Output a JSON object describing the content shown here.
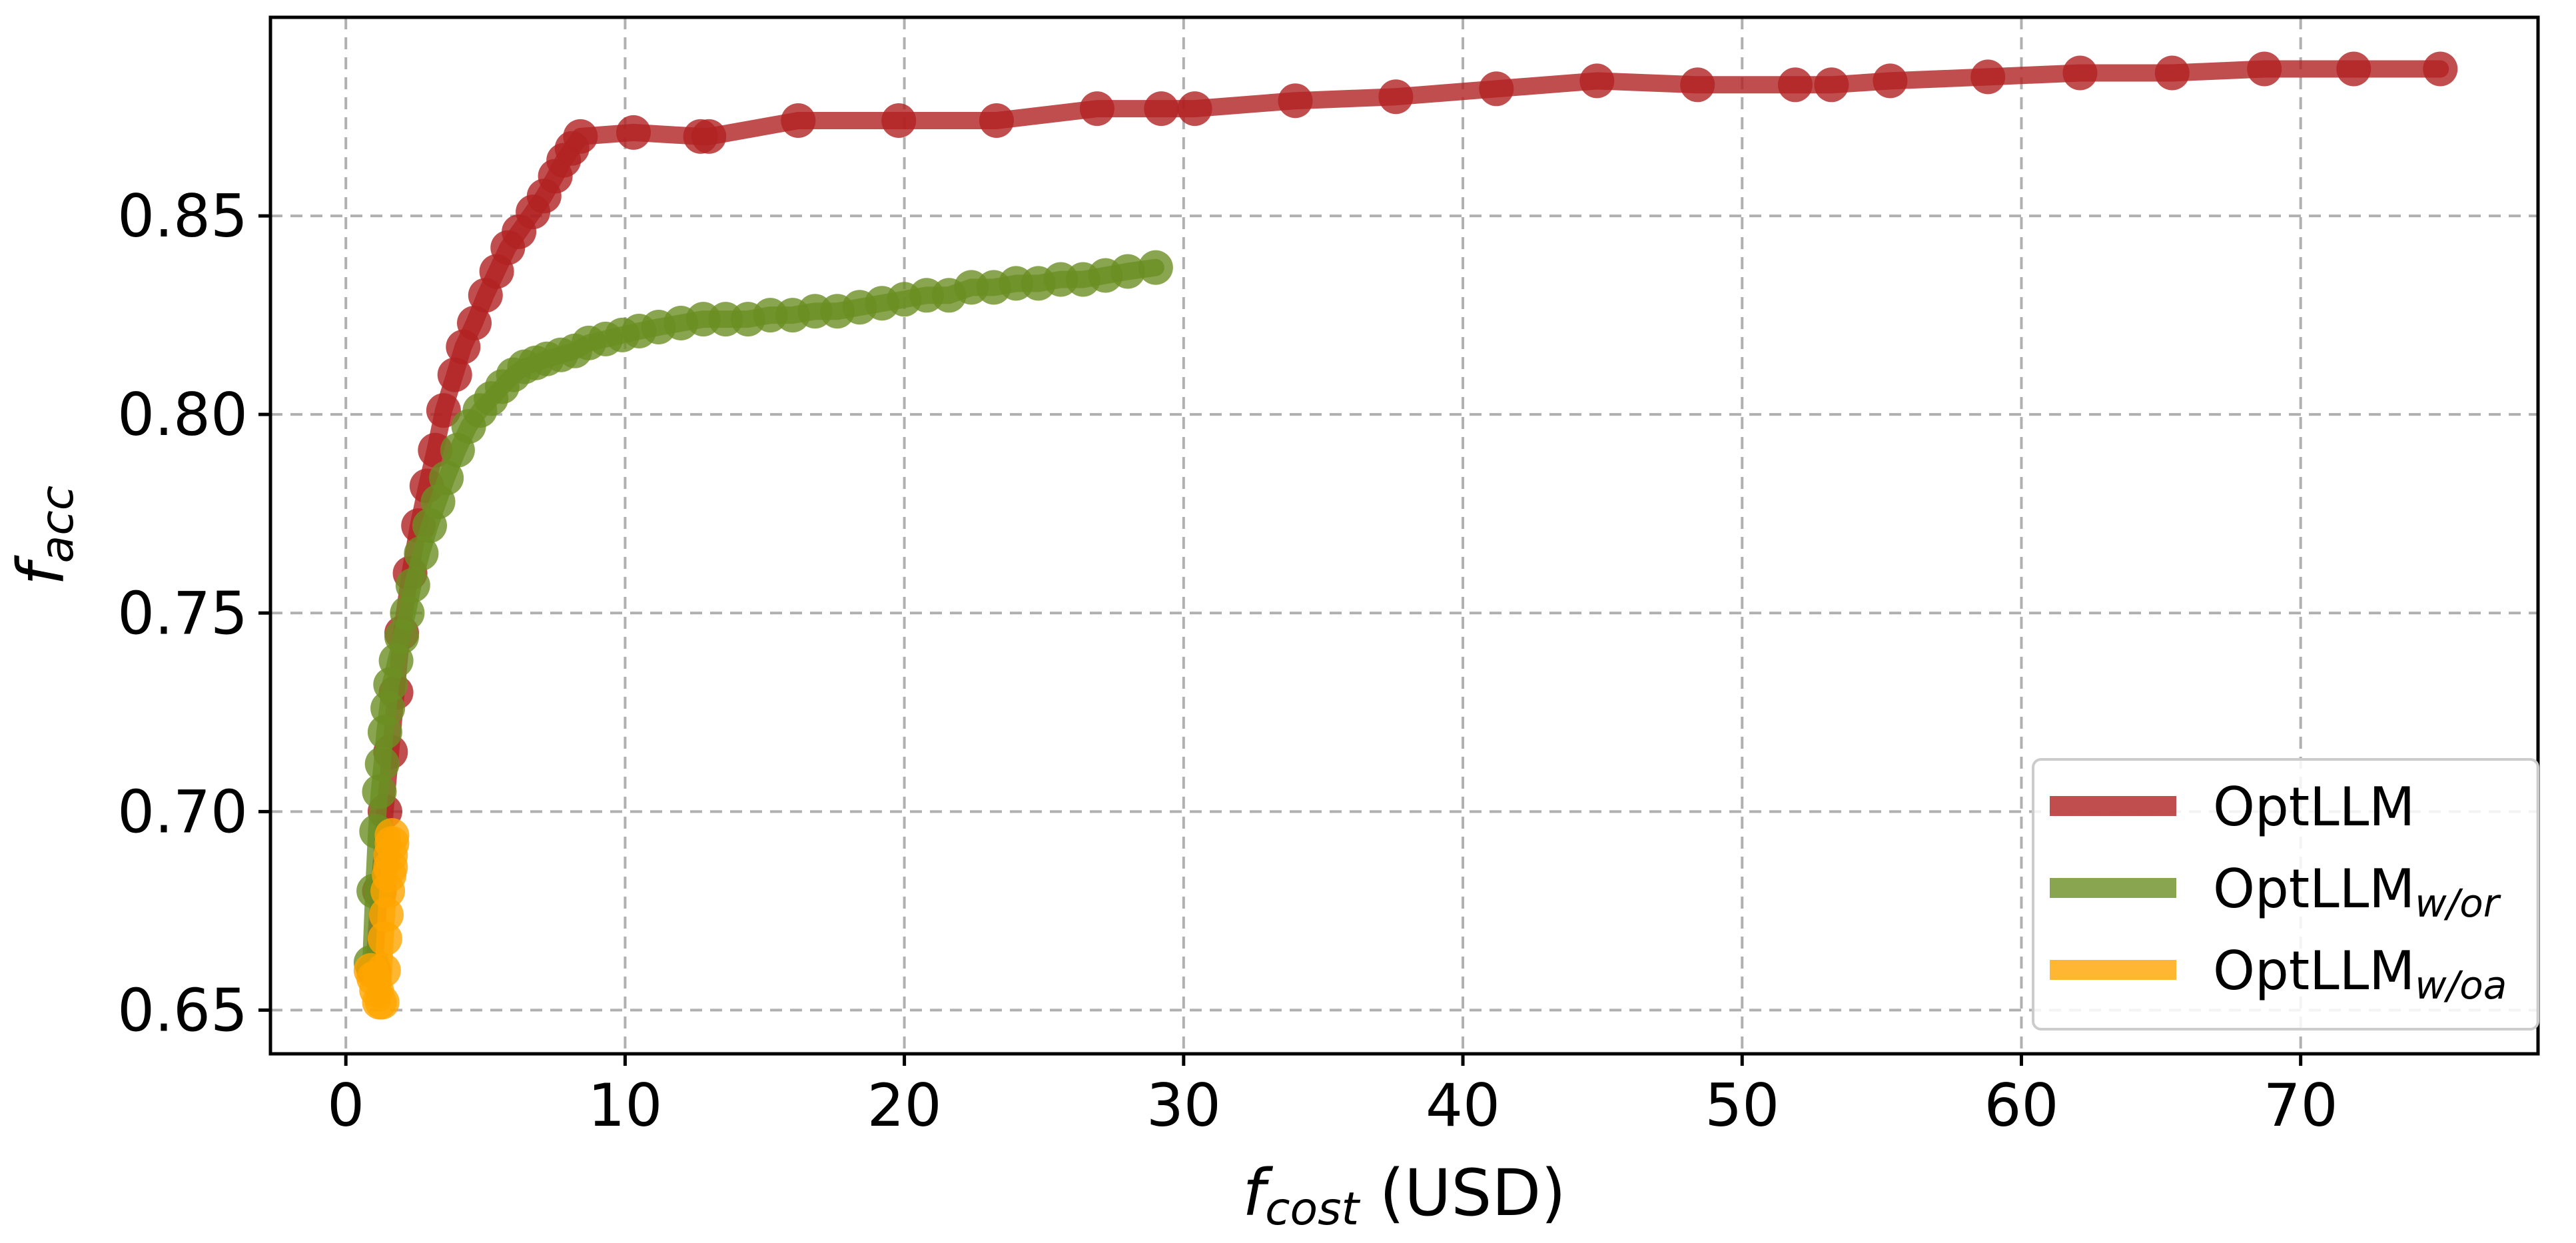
{
  "chart_data": {
    "type": "line",
    "title": "",
    "xlabel": {
      "main": "f",
      "sub": "cost",
      "suffix": " (USD)"
    },
    "ylabel": {
      "main": "f",
      "sub": "acc"
    },
    "xlim": [
      -2.7,
      78.5
    ],
    "ylim": [
      0.639,
      0.9
    ],
    "xticks": [
      0,
      10,
      20,
      30,
      40,
      50,
      60,
      70
    ],
    "xtick_labels": [
      "0",
      "10",
      "20",
      "30",
      "40",
      "50",
      "60",
      "70"
    ],
    "yticks": [
      0.65,
      0.7,
      0.75,
      0.8,
      0.85
    ],
    "ytick_labels": [
      "0.65",
      "0.70",
      "0.75",
      "0.80",
      "0.85"
    ],
    "grid": true,
    "legend_position": "bottom-right",
    "series": [
      {
        "name": "OptLLM",
        "legend_sub": "",
        "color": "#b22222",
        "x": [
          1.0,
          1.2,
          1.4,
          1.6,
          1.8,
          2.0,
          2.3,
          2.6,
          2.9,
          3.2,
          3.5,
          3.9,
          4.2,
          4.6,
          5.0,
          5.4,
          5.8,
          6.2,
          6.7,
          7.1,
          7.5,
          7.8,
          8.1,
          8.4,
          10.3,
          12.7,
          13.0,
          16.2,
          19.8,
          23.3,
          26.9,
          29.2,
          30.4,
          34.0,
          37.6,
          41.2,
          44.8,
          48.4,
          51.9,
          53.2,
          55.3,
          58.8,
          62.1,
          65.4,
          68.7,
          71.9,
          75.0
        ],
        "y": [
          0.66,
          0.68,
          0.7,
          0.715,
          0.73,
          0.745,
          0.76,
          0.772,
          0.782,
          0.791,
          0.801,
          0.81,
          0.817,
          0.823,
          0.83,
          0.836,
          0.842,
          0.846,
          0.851,
          0.855,
          0.86,
          0.864,
          0.867,
          0.87,
          0.871,
          0.87,
          0.87,
          0.874,
          0.874,
          0.874,
          0.877,
          0.877,
          0.877,
          0.879,
          0.88,
          0.882,
          0.884,
          0.883,
          0.883,
          0.883,
          0.884,
          0.885,
          0.886,
          0.886,
          0.887,
          0.887,
          0.887
        ]
      },
      {
        "name": "OptLLM",
        "legend_sub": "w/or",
        "color": "#6b8e23",
        "x": [
          0.9,
          1.0,
          1.1,
          1.2,
          1.3,
          1.4,
          1.5,
          1.6,
          1.8,
          2.0,
          2.2,
          2.4,
          2.7,
          3.0,
          3.3,
          3.6,
          4.0,
          4.4,
          4.8,
          5.2,
          5.6,
          6.0,
          6.4,
          6.8,
          7.2,
          7.7,
          8.2,
          8.7,
          9.3,
          9.9,
          10.5,
          11.2,
          12.0,
          12.8,
          13.6,
          14.4,
          15.2,
          16.0,
          16.8,
          17.6,
          18.4,
          19.2,
          20.0,
          20.8,
          21.6,
          22.4,
          23.2,
          24.0,
          24.8,
          25.6,
          26.4,
          27.2,
          28.0,
          29.0
        ],
        "y": [
          0.662,
          0.68,
          0.695,
          0.705,
          0.712,
          0.72,
          0.726,
          0.732,
          0.738,
          0.744,
          0.75,
          0.757,
          0.765,
          0.772,
          0.778,
          0.784,
          0.791,
          0.797,
          0.801,
          0.804,
          0.807,
          0.81,
          0.812,
          0.813,
          0.814,
          0.815,
          0.816,
          0.818,
          0.819,
          0.82,
          0.821,
          0.822,
          0.823,
          0.824,
          0.824,
          0.824,
          0.825,
          0.825,
          0.826,
          0.826,
          0.827,
          0.828,
          0.829,
          0.83,
          0.83,
          0.832,
          0.832,
          0.833,
          0.833,
          0.834,
          0.834,
          0.835,
          0.836,
          0.837
        ]
      },
      {
        "name": "OptLLM",
        "legend_sub": "w/oa",
        "color": "#ffa500",
        "x": [
          0.9,
          1.0,
          1.1,
          1.2,
          1.3,
          1.35,
          1.4,
          1.45,
          1.5,
          1.55,
          1.6,
          1.6,
          1.65,
          1.65
        ],
        "y": [
          0.66,
          0.658,
          0.655,
          0.652,
          0.652,
          0.66,
          0.668,
          0.674,
          0.68,
          0.684,
          0.686,
          0.689,
          0.692,
          0.694
        ]
      }
    ]
  }
}
